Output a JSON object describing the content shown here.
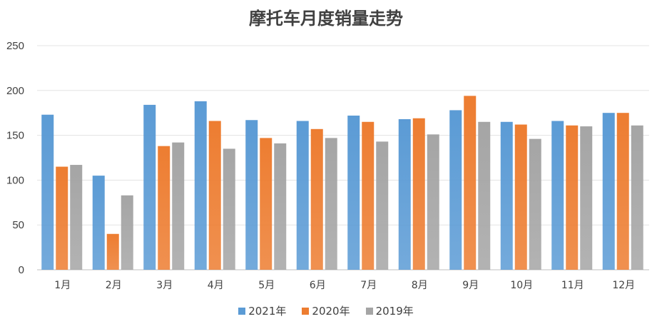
{
  "chart_data": {
    "type": "bar",
    "title": "摩托车月度销量走势",
    "categories": [
      "1月",
      "2月",
      "3月",
      "4月",
      "5月",
      "6月",
      "7月",
      "8月",
      "9月",
      "10月",
      "11月",
      "12月"
    ],
    "series": [
      {
        "name": "2021年",
        "color": "#5B9BD5",
        "values": [
          173,
          105,
          184,
          188,
          167,
          166,
          172,
          168,
          178,
          165,
          166,
          175
        ]
      },
      {
        "name": "2020年",
        "color": "#ED7D31",
        "values": [
          115,
          40,
          138,
          166,
          147,
          157,
          165,
          169,
          194,
          162,
          161,
          175
        ]
      },
      {
        "name": "2019年",
        "color": "#A5A5A5",
        "values": [
          117,
          83,
          142,
          135,
          141,
          147,
          143,
          151,
          165,
          146,
          160,
          161
        ]
      }
    ],
    "ylim": [
      0,
      250
    ],
    "yticks": [
      0,
      50,
      100,
      150,
      200,
      250
    ],
    "grid": true,
    "legend": "bottom"
  }
}
